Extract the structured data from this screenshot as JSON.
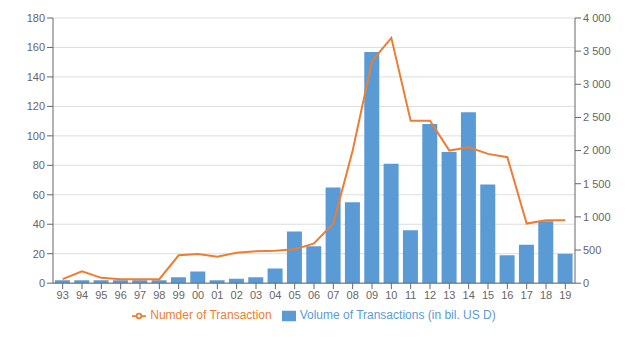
{
  "chart_data": {
    "type": "bar",
    "categories": [
      "93",
      "94",
      "95",
      "96",
      "97",
      "98",
      "99",
      "00",
      "01",
      "02",
      "03",
      "04",
      "05",
      "06",
      "07",
      "08",
      "09",
      "10",
      "11",
      "12",
      "13",
      "14",
      "15",
      "16",
      "17",
      "18",
      "19"
    ],
    "series": [
      {
        "name": "Volume of Transactions (in bil. US D)",
        "type": "bar",
        "color": "#5B9BD5",
        "values": [
          2,
          2,
          2,
          2,
          2,
          2,
          4,
          8,
          2,
          3,
          4,
          10,
          35,
          25,
          65,
          55,
          157,
          81,
          36,
          108,
          89,
          116,
          67,
          19,
          26,
          42,
          20
        ]
      },
      {
        "name": "Numder of Transaction",
        "type": "line",
        "color": "#ED7D31",
        "axis": "y2",
        "values": [
          60,
          180,
          80,
          60,
          60,
          60,
          420,
          440,
          400,
          460,
          480,
          490,
          510,
          600,
          900,
          2000,
          3350,
          3700,
          2450,
          2450,
          2000,
          2050,
          1950,
          1900,
          900,
          950,
          950
        ]
      }
    ],
    "ylim": [
      0,
      180
    ],
    "yticks": [
      0,
      20,
      40,
      60,
      80,
      100,
      120,
      140,
      160,
      180
    ],
    "y2lim": [
      0,
      4000
    ],
    "y2ticks": [
      0,
      500,
      {
        "value": 1000,
        "label": "1 000"
      },
      {
        "value": 1500,
        "label": "1 500"
      },
      {
        "value": 2000,
        "label": "2 000"
      },
      {
        "value": 2500,
        "label": "2 500"
      },
      {
        "value": 3000,
        "label": "3 000"
      },
      {
        "value": 3500,
        "label": "3 500"
      },
      {
        "value": 4000,
        "label": "4 000"
      }
    ],
    "grid": true,
    "legend": "bottom"
  }
}
